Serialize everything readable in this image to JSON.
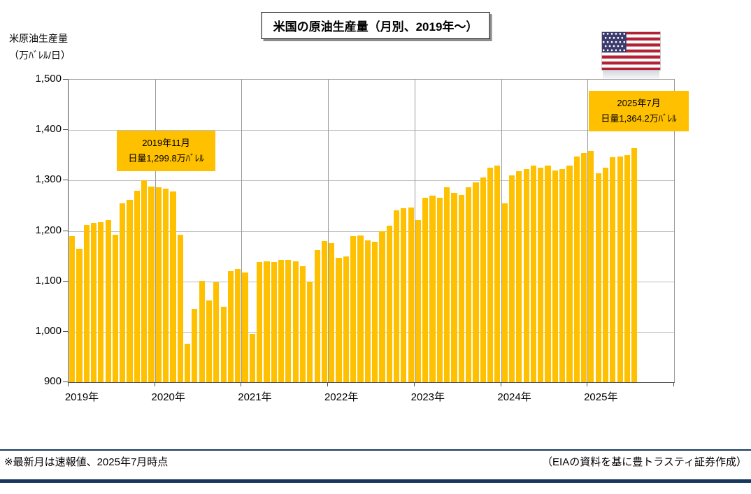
{
  "page_title": "米国の原油生産量（月別、2019年～）",
  "y_axis_title": {
    "line1": "米原油生産量",
    "line2": "（万ﾊﾞﾚﾙ/日）"
  },
  "callouts": [
    {
      "line1": "2019年11月",
      "line2": "日量1,299.8万ﾊﾞﾚﾙ"
    },
    {
      "line1": "2025年7月",
      "line2": "日量1,364.2万ﾊﾞﾚﾙ"
    }
  ],
  "footer": {
    "left": "※最新月は速報値、2025年7月時点",
    "right": "（EIAの資料を基に豊トラスティ証券作成）"
  },
  "icons": {
    "flag": "us-flag"
  },
  "colors": {
    "bar": "#FFC000",
    "callout_bg": "#FFC000",
    "navy_rule": "#17375E",
    "flag_red": "#B22234",
    "flag_blue": "#3C3B6E"
  },
  "chart_data": {
    "type": "bar",
    "title": "米国の原油生産量（月別、2019年～）",
    "xlabel": "",
    "ylabel": "万ﾊﾞﾚﾙ/日",
    "ylim": [
      900,
      1500
    ],
    "yticks": [
      900,
      1000,
      1100,
      1200,
      1300,
      1400,
      1500
    ],
    "x_tick_labels": [
      "2019年",
      "2020年",
      "2021年",
      "2022年",
      "2023年",
      "2024年",
      "2025年"
    ],
    "x_start": "2019-01",
    "x_slots": 84,
    "grid": true,
    "legend": false,
    "values": [
      1190,
      1165,
      1212,
      1216,
      1218,
      1221,
      1193,
      1255,
      1262,
      1280,
      1299.8,
      1288,
      1286,
      1284,
      1279,
      1193,
      976,
      1046,
      1101,
      1062,
      1098,
      1050,
      1120,
      1124,
      1117,
      995,
      1138,
      1140,
      1139,
      1142,
      1143,
      1140,
      1130,
      1100,
      1162,
      1180,
      1176,
      1146,
      1149,
      1190,
      1191,
      1181,
      1178,
      1200,
      1211,
      1241,
      1245,
      1247,
      1221,
      1266,
      1270,
      1266,
      1286,
      1276,
      1271,
      1286,
      1296,
      1306,
      1326,
      1330,
      1255,
      1310,
      1318,
      1322,
      1329,
      1325,
      1330,
      1320,
      1322,
      1330,
      1347,
      1355,
      1358,
      1315,
      1325,
      1346,
      1347,
      1350,
      1364.2
    ],
    "annotations": [
      {
        "label": "2019年11月",
        "value": 1299.8
      },
      {
        "label": "2025年7月",
        "value": 1364.2
      }
    ]
  }
}
